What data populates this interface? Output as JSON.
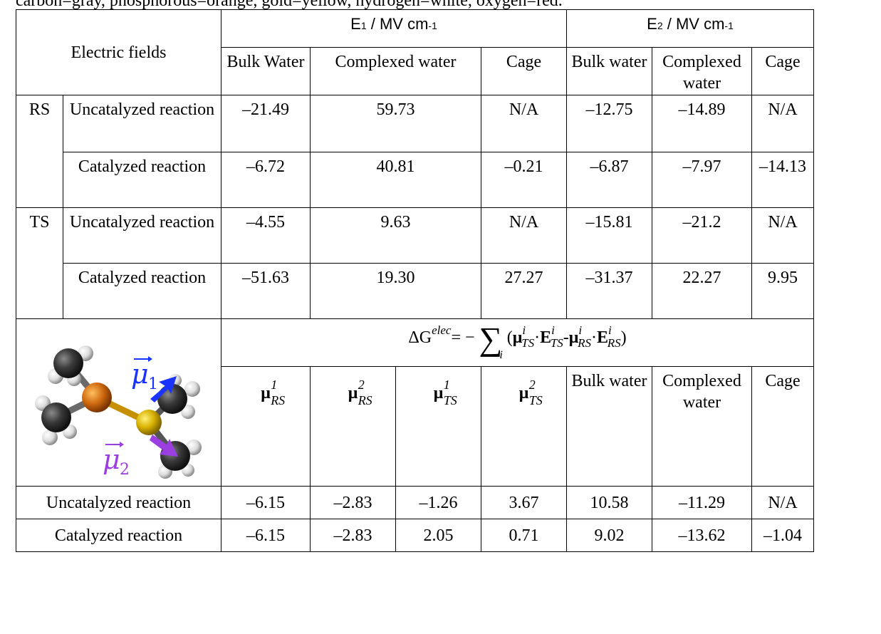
{
  "caption_fragment": "carbon=gray, phosphorous=orange, gold=yellow, hydrogen=white, oxygen=red.",
  "header": {
    "row_label": "Electric fields",
    "e1_prefix": "E",
    "e1_sub": "1",
    "e1_suffix": " / MV cm",
    "e1_exp": "-1",
    "e2_prefix": "E",
    "e2_sub": "2",
    "e2_suffix": " / MV cm",
    "e2_exp": "-1",
    "cols": [
      "Bulk Water",
      "Complexed water",
      "Cage",
      "Bulk water",
      "Complexed water",
      "Cage"
    ]
  },
  "rows": [
    {
      "state": "RS",
      "label": "Uncatalyzed reaction",
      "values": [
        "–21.49",
        "59.73",
        "N/A",
        "–12.75",
        "–14.89",
        "N/A"
      ]
    },
    {
      "state": "",
      "label": "Catalyzed reaction",
      "values": [
        "–6.72",
        "40.81",
        "–0.21",
        "–6.87",
        "–7.97",
        "–14.13"
      ]
    },
    {
      "state": "TS",
      "label": "Uncatalyzed reaction",
      "values": [
        "–4.55",
        "9.63",
        "N/A",
        "–15.81",
        "–21.2",
        "N/A"
      ]
    },
    {
      "state": "",
      "label": "Catalyzed reaction",
      "values": [
        "–51.63",
        "19.30",
        "27.27",
        "–31.37",
        "22.27",
        "9.95"
      ]
    }
  ],
  "formula": {
    "lhs": "ΔG",
    "lhs_sup": "elec",
    "eq": "= −",
    "sum": "∑",
    "sum_idx": "i",
    "mu": "μ",
    "E": "E",
    "dot": "·",
    "minus": "-",
    "i": "i",
    "TS": "TS",
    "RS": "RS",
    "open": "(",
    "close": ")"
  },
  "dipole_header": {
    "mu": "μ",
    "labels": [
      {
        "sup": "1",
        "sub": "RS"
      },
      {
        "sup": "2",
        "sub": "RS"
      },
      {
        "sup": "1",
        "sub": "TS"
      },
      {
        "sup": "2",
        "sub": "TS"
      }
    ],
    "cols": [
      "Bulk water",
      "Complexed water",
      "Cage"
    ],
    "mu1_label": "μ",
    "mu1_sub": "1",
    "mu2_label": "μ",
    "mu2_sub": "2",
    "mu1_color": "#1a33ff",
    "mu2_color": "#9b3fe0"
  },
  "energy_rows": [
    {
      "label": "Uncatalyzed reaction",
      "values": [
        "–6.15",
        "–2.83",
        "–1.26",
        "3.67",
        "10.58",
        "–11.29",
        "N/A"
      ]
    },
    {
      "label": "Catalyzed reaction",
      "values": [
        "–6.15",
        "–2.83",
        "2.05",
        "0.71",
        "9.02",
        "–13.62",
        "–1.04"
      ]
    }
  ]
}
